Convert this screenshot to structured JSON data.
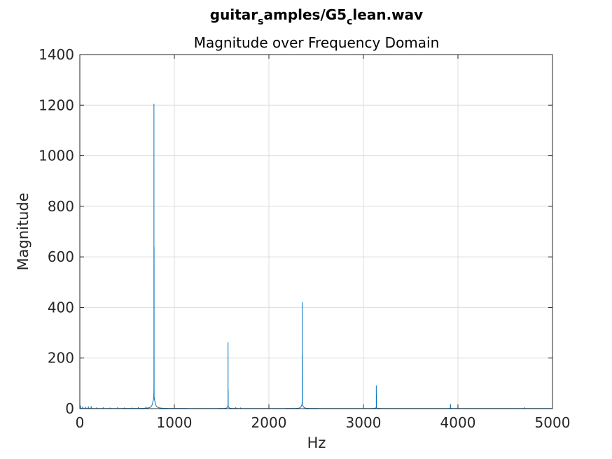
{
  "colors": {
    "series": "#0072bd",
    "grid": "#dcdcdc",
    "axes": "#262626",
    "background": "#ffffff"
  },
  "chart_data": {
    "type": "line",
    "title_parts": [
      {
        "text": "guitar",
        "sub": false
      },
      {
        "text": "s",
        "sub": true
      },
      {
        "text": "amples/G5",
        "sub": false
      },
      {
        "text": "c",
        "sub": true
      },
      {
        "text": "lean.wav",
        "sub": false
      }
    ],
    "subtitle": "Magnitude over Frequency Domain",
    "xlabel": "Hz",
    "ylabel": "Magnitude",
    "xlim": [
      0,
      5000
    ],
    "ylim": [
      0,
      1400
    ],
    "xticks": [
      0,
      1000,
      2000,
      3000,
      4000,
      5000
    ],
    "yticks": [
      0,
      200,
      400,
      600,
      800,
      1000,
      1200,
      1400
    ],
    "grid": true,
    "series": [
      {
        "peaks": [
          {
            "f": 784,
            "a": 1205,
            "w": 14,
            "second": 640
          },
          {
            "f": 1568,
            "a": 262,
            "w": 8,
            "second": 75
          },
          {
            "f": 2352,
            "a": 421,
            "w": 12,
            "second": 213
          },
          {
            "f": 3136,
            "a": 92,
            "w": 8,
            "second": 58
          },
          {
            "f": 3920,
            "a": 18,
            "w": 6,
            "second": 16
          },
          {
            "f": 4704,
            "a": 5,
            "w": 4,
            "second": 3
          }
        ],
        "low_spikes": [
          {
            "f": 5,
            "a": 10
          },
          {
            "f": 30,
            "a": 7
          },
          {
            "f": 60,
            "a": 6
          },
          {
            "f": 90,
            "a": 8
          },
          {
            "f": 120,
            "a": 9
          },
          {
            "f": 180,
            "a": 4
          },
          {
            "f": 250,
            "a": 4
          },
          {
            "f": 320,
            "a": 3
          },
          {
            "f": 400,
            "a": 4
          },
          {
            "f": 470,
            "a": 3
          },
          {
            "f": 550,
            "a": 3
          },
          {
            "f": 620,
            "a": 4
          },
          {
            "f": 700,
            "a": 5
          },
          {
            "f": 1650,
            "a": 4
          },
          {
            "f": 1700,
            "a": 3
          }
        ]
      }
    ]
  }
}
